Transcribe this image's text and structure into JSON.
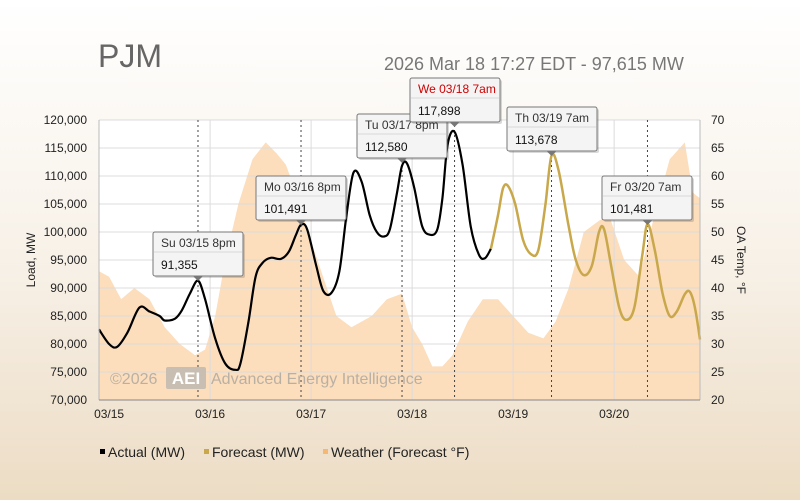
{
  "header": {
    "title": "PJM",
    "status": "2026 Mar 18 17:27 EDT - 97,615 MW"
  },
  "watermark": {
    "prefix": "©2026",
    "logo": "AEI",
    "name": "Advanced Energy Intelligence"
  },
  "colors": {
    "actual": "#000000",
    "forecast": "#c8a84b",
    "weather_fill": "#fbd7b0",
    "grid": "#dcdcdc",
    "highlight_date": "#d00000"
  },
  "chart_data": {
    "type": "line",
    "xlabel": "",
    "ylabel": "Load, MW",
    "ylabel_right": "OA Temp, °F",
    "x_categories": [
      "03/15",
      "03/16",
      "03/17",
      "03/18",
      "03/19",
      "03/20"
    ],
    "xlim_days": [
      -0.1,
      5.85
    ],
    "ylim": [
      70000,
      120000
    ],
    "yticks": [
      "70,000",
      "75,000",
      "80,000",
      "85,000",
      "90,000",
      "95,000",
      "100,000",
      "105,000",
      "110,000",
      "115,000",
      "120,000"
    ],
    "y2lim": [
      20,
      70
    ],
    "y2ticks": [
      "20",
      "25",
      "30",
      "35",
      "40",
      "45",
      "50",
      "55",
      "60",
      "65",
      "70"
    ],
    "grid": true,
    "legend_position": "bottom",
    "legend": [
      "Actual (MW)",
      "Forecast (MW)",
      "Weather (Forecast °F)"
    ],
    "series": [
      {
        "name": "Actual (MW)",
        "points": [
          [
            -0.1,
            82600
          ],
          [
            0.0,
            80000
          ],
          [
            0.08,
            79500
          ],
          [
            0.18,
            82000
          ],
          [
            0.3,
            86500
          ],
          [
            0.4,
            85800
          ],
          [
            0.5,
            85000
          ],
          [
            0.55,
            84200
          ],
          [
            0.65,
            84500
          ],
          [
            0.72,
            86000
          ],
          [
            0.8,
            89000
          ],
          [
            0.88,
            91300
          ],
          [
            0.95,
            88000
          ],
          [
            1.05,
            81000
          ],
          [
            1.15,
            76500
          ],
          [
            1.25,
            75400
          ],
          [
            1.3,
            76500
          ],
          [
            1.38,
            84000
          ],
          [
            1.45,
            92000
          ],
          [
            1.52,
            94500
          ],
          [
            1.6,
            95400
          ],
          [
            1.7,
            95200
          ],
          [
            1.78,
            96500
          ],
          [
            1.85,
            99500
          ],
          [
            1.9,
            101300
          ],
          [
            1.96,
            100500
          ],
          [
            2.05,
            94000
          ],
          [
            2.12,
            89500
          ],
          [
            2.2,
            89100
          ],
          [
            2.28,
            93000
          ],
          [
            2.35,
            103000
          ],
          [
            2.42,
            110600
          ],
          [
            2.5,
            109000
          ],
          [
            2.58,
            103000
          ],
          [
            2.65,
            100000
          ],
          [
            2.72,
            99200
          ],
          [
            2.78,
            100500
          ],
          [
            2.85,
            107000
          ],
          [
            2.9,
            111800
          ],
          [
            2.95,
            112200
          ],
          [
            3.02,
            108000
          ],
          [
            3.1,
            101000
          ],
          [
            3.18,
            99500
          ],
          [
            3.25,
            100500
          ],
          [
            3.3,
            106000
          ],
          [
            3.35,
            115500
          ],
          [
            3.42,
            117900
          ],
          [
            3.5,
            112000
          ],
          [
            3.58,
            101000
          ],
          [
            3.66,
            96000
          ],
          [
            3.72,
            95300
          ],
          [
            3.78,
            97000
          ]
        ]
      },
      {
        "name": "Forecast (MW)",
        "points": [
          [
            3.78,
            97000
          ],
          [
            3.85,
            103000
          ],
          [
            3.9,
            107800
          ],
          [
            3.95,
            108200
          ],
          [
            4.02,
            105000
          ],
          [
            4.1,
            98500
          ],
          [
            4.18,
            96000
          ],
          [
            4.25,
            96800
          ],
          [
            4.32,
            105000
          ],
          [
            4.38,
            113600
          ],
          [
            4.45,
            111000
          ],
          [
            4.55,
            101000
          ],
          [
            4.62,
            95000
          ],
          [
            4.7,
            92300
          ],
          [
            4.78,
            94000
          ],
          [
            4.85,
            100000
          ],
          [
            4.9,
            100500
          ],
          [
            4.97,
            94000
          ],
          [
            5.05,
            86500
          ],
          [
            5.12,
            84300
          ],
          [
            5.2,
            86500
          ],
          [
            5.28,
            96000
          ],
          [
            5.33,
            101400
          ],
          [
            5.4,
            97000
          ],
          [
            5.48,
            89000
          ],
          [
            5.55,
            85000
          ],
          [
            5.62,
            85800
          ],
          [
            5.7,
            88900
          ],
          [
            5.75,
            89300
          ],
          [
            5.8,
            86500
          ],
          [
            5.85,
            80800
          ]
        ]
      },
      {
        "name": "Weather (Forecast °F)",
        "points": [
          [
            -0.1,
            43
          ],
          [
            0.0,
            42
          ],
          [
            0.12,
            38
          ],
          [
            0.25,
            40
          ],
          [
            0.4,
            38
          ],
          [
            0.55,
            33
          ],
          [
            0.7,
            30
          ],
          [
            0.85,
            28
          ],
          [
            0.95,
            29
          ],
          [
            1.05,
            35
          ],
          [
            1.15,
            45
          ],
          [
            1.28,
            55
          ],
          [
            1.42,
            63
          ],
          [
            1.55,
            66
          ],
          [
            1.66,
            64
          ],
          [
            1.75,
            62
          ],
          [
            1.85,
            57
          ],
          [
            1.95,
            51
          ],
          [
            2.1,
            43
          ],
          [
            2.25,
            35
          ],
          [
            2.4,
            33
          ],
          [
            2.6,
            35
          ],
          [
            2.75,
            38
          ],
          [
            2.9,
            39
          ],
          [
            3.0,
            33
          ],
          [
            3.1,
            30
          ],
          [
            3.2,
            26
          ],
          [
            3.3,
            26
          ],
          [
            3.4,
            28
          ],
          [
            3.55,
            34
          ],
          [
            3.7,
            38
          ],
          [
            3.85,
            38
          ],
          [
            4.0,
            35
          ],
          [
            4.15,
            32
          ],
          [
            4.3,
            31
          ],
          [
            4.42,
            34
          ],
          [
            4.55,
            40
          ],
          [
            4.7,
            50
          ],
          [
            4.85,
            52
          ],
          [
            4.95,
            53
          ],
          [
            5.1,
            45
          ],
          [
            5.25,
            42
          ],
          [
            5.4,
            53
          ],
          [
            5.55,
            63
          ],
          [
            5.7,
            66
          ],
          [
            5.78,
            57
          ],
          [
            5.85,
            56
          ]
        ]
      }
    ],
    "annotations": [
      {
        "label": "Su 03/15 8pm",
        "value": "91,355",
        "x": 0.88,
        "y": 91355,
        "highlight": false
      },
      {
        "label": "Mo 03/16 8pm",
        "value": "101,491",
        "x": 1.9,
        "y": 101491,
        "highlight": false
      },
      {
        "label": "Tu 03/17 8pm",
        "value": "112,580",
        "x": 2.9,
        "y": 112580,
        "highlight": false
      },
      {
        "label": "We 03/18 7am",
        "value": "117,898",
        "x": 3.42,
        "y": 117898,
        "highlight": true
      },
      {
        "label": "Th 03/19 7am",
        "value": "113,678",
        "x": 4.38,
        "y": 113678,
        "highlight": false
      },
      {
        "label": "Fr 03/20 7am",
        "value": "101,481",
        "x": 5.33,
        "y": 101481,
        "highlight": false
      }
    ]
  }
}
